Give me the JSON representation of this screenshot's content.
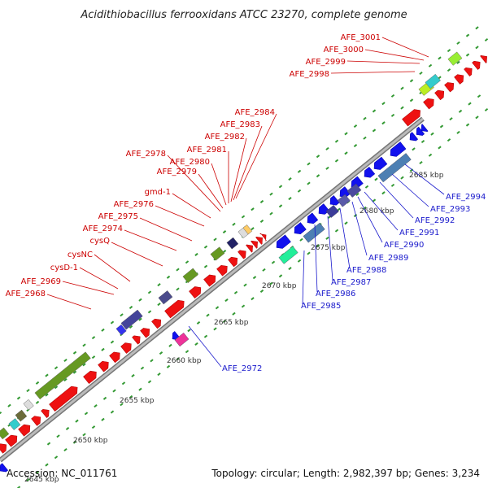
{
  "title": "Acidithiobacillus ferrooxidans ATCC 23270, complete genome",
  "footer": {
    "accession": "Accession: NC_011761",
    "summary": "Topology: circular; Length: 2,982,397 bp; Genes: 3,234"
  },
  "colors": {
    "forward_cds": "#ee1111",
    "reverse_cds": "#1111ee",
    "backbone": "#999999",
    "forward_label": "#cc0000",
    "reverse_label": "#1a1acc",
    "dot": "#339933"
  },
  "kbp_ticks": [
    "2645 kbp",
    "2650 kbp",
    "2655 kbp",
    "2660 kbp",
    "2665 kbp",
    "2670 kbp",
    "2675 kbp",
    "2680 kbp",
    "2685 kbp"
  ],
  "forward_labels": [
    "AFE_3001",
    "AFE_3000",
    "AFE_2999",
    "AFE_2998",
    "AFE_2984",
    "AFE_2983",
    "AFE_2982",
    "AFE_2981",
    "AFE_2980",
    "AFE_2979",
    "AFE_2978",
    "gmd-1",
    "AFE_2976",
    "AFE_2975",
    "AFE_2974",
    "cysQ",
    "cysNC",
    "cysD-1",
    "AFE_2969",
    "AFE_2968"
  ],
  "reverse_labels": [
    "AFE_2994",
    "AFE_2993",
    "AFE_2992",
    "AFE_2991",
    "AFE_2990",
    "AFE_2989",
    "AFE_2988",
    "AFE_2987",
    "AFE_2986",
    "AFE_2985",
    "AFE_2972"
  ]
}
